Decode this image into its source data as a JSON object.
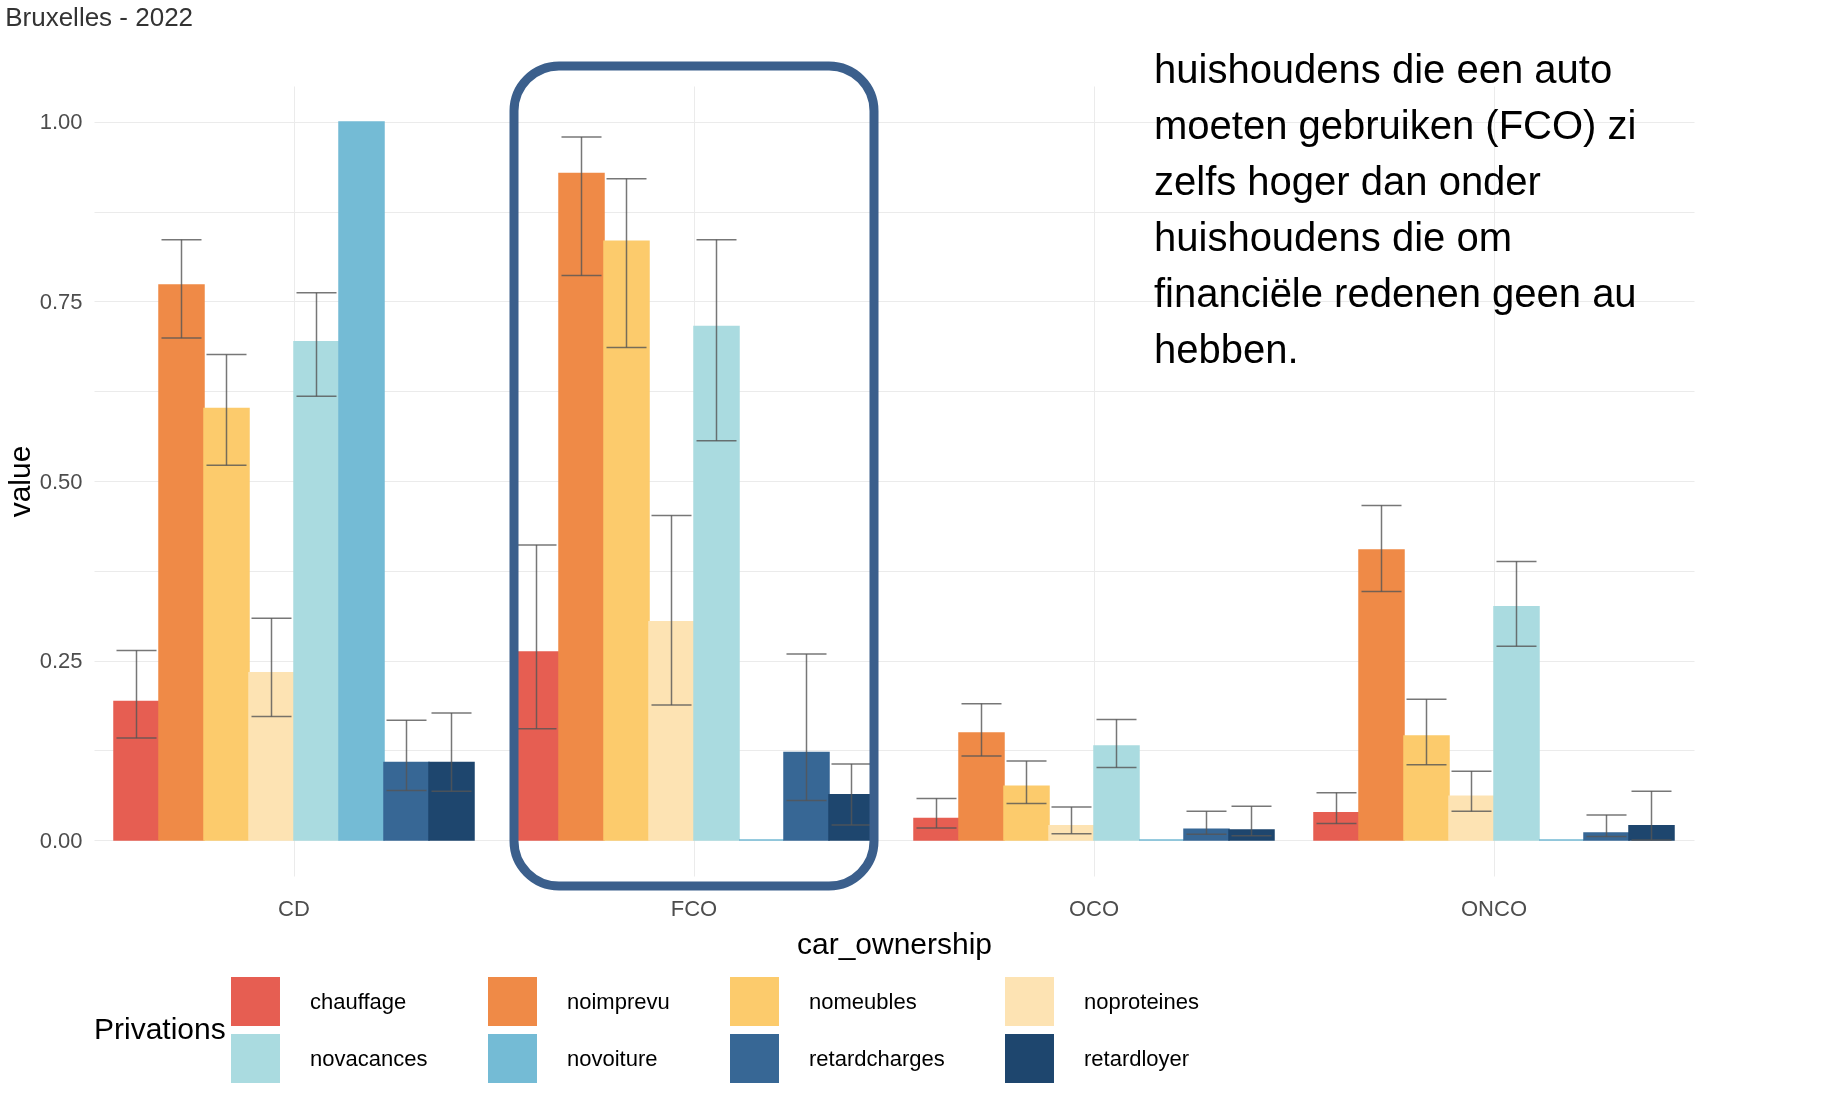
{
  "chart_data": {
    "type": "bar",
    "title": "Bruxelles - 2022",
    "xlabel": "car_ownership",
    "ylabel": "value",
    "legend_title": "Privations",
    "legend": "bottom",
    "grid": true,
    "categories": [
      "CD",
      "FCO",
      "OCO",
      "ONCO"
    ],
    "ylim": [
      -0.05,
      1.05
    ],
    "yticks": [
      {
        "value": 0,
        "label": "0.00"
      },
      {
        "value": 0.125,
        "label": null
      },
      0.25,
      {
        "value": 0.375,
        "label": null
      },
      {
        "value": 0.5,
        "label": "0.50"
      },
      {
        "value": 0.625,
        "label": null
      },
      0.75,
      {
        "value": 0.875,
        "label": null
      },
      {
        "value": 1,
        "label": "1.00"
      }
    ],
    "series": [
      {
        "name": "chauffage",
        "color": "#e65e52",
        "values": [
          0.193,
          0.262,
          0.03,
          0.038
        ],
        "errors": [
          [
            0.142,
            0.264
          ],
          [
            0.155,
            0.411
          ],
          [
            0.017,
            0.058
          ],
          [
            0.023,
            0.066
          ]
        ]
      },
      {
        "name": "noimprevu",
        "color": "#ef8a47",
        "values": [
          0.773,
          0.928,
          0.149,
          0.404
        ],
        "errors": [
          [
            0.699,
            0.836
          ],
          [
            0.786,
            0.979
          ],
          [
            0.117,
            0.19
          ],
          [
            0.346,
            0.466
          ]
        ]
      },
      {
        "name": "nomeubles",
        "color": "#fccb6c",
        "values": [
          0.601,
          0.834,
          0.075,
          0.145
        ],
        "errors": [
          [
            0.522,
            0.676
          ],
          [
            0.686,
            0.921
          ],
          [
            0.051,
            0.11
          ],
          [
            0.105,
            0.196
          ]
        ]
      },
      {
        "name": "noproteines",
        "color": "#fde3b3",
        "values": [
          0.233,
          0.304,
          0.02,
          0.061
        ],
        "errors": [
          [
            0.172,
            0.309
          ],
          [
            0.188,
            0.452
          ],
          [
            0.009,
            0.046
          ],
          [
            0.04,
            0.096
          ]
        ]
      },
      {
        "name": "novacances",
        "color": "#aadbe0",
        "values": [
          0.694,
          0.715,
          0.131,
          0.325
        ],
        "errors": [
          [
            0.618,
            0.762
          ],
          [
            0.556,
            0.836
          ],
          [
            0.101,
            0.168
          ],
          [
            0.27,
            0.388
          ]
        ]
      },
      {
        "name": "novoiture",
        "color": "#74bbd5",
        "values": [
          1.0,
          0,
          0,
          0
        ]
      },
      {
        "name": "retardcharges",
        "color": "#376795",
        "values": [
          0.108,
          0.122,
          0.015,
          0.01
        ],
        "errors": [
          [
            0.069,
            0.167
          ],
          [
            0.055,
            0.259
          ],
          [
            0.008,
            0.04
          ],
          [
            0.005,
            0.035
          ]
        ]
      },
      {
        "name": "retardloyer",
        "color": "#1e466e",
        "values": [
          0.108,
          0.063,
          0.014,
          0.02
        ],
        "errors": [
          [
            0.068,
            0.177
          ],
          [
            0.021,
            0.106
          ],
          [
            0.006,
            0.047
          ],
          [
            0.0,
            0.068
          ]
        ]
      }
    ],
    "annotations": [
      "huishoudens die een auto",
      "moeten gebruiken (FCO) zi",
      "zelfs hoger dan onder",
      "huishoudens die om",
      "financiële redenen geen au",
      "hebben."
    ]
  }
}
